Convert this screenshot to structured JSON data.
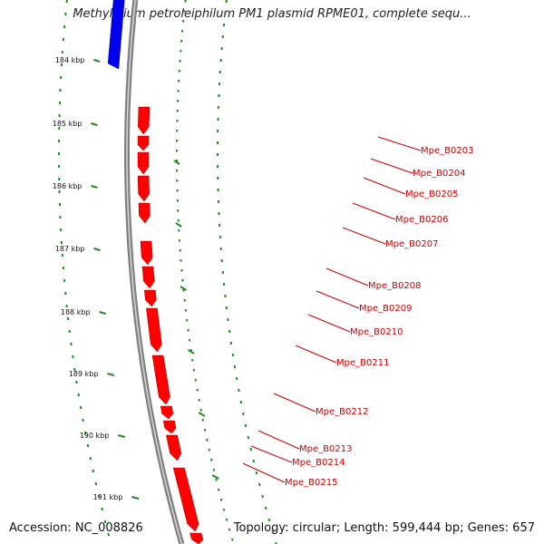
{
  "title": "Methylibium petroleiphilum PM1 plasmid RPME01, complete sequ...",
  "footer": {
    "accession": "Accession: NC_008826",
    "topology": "Topology: circular; Length: 599,444 bp; Genes: 657"
  },
  "ticks": [
    "184 kbp",
    "185 kbp",
    "186 kbp",
    "187 kbp",
    "188 kbp",
    "189 kbp",
    "190 kbp",
    "191 kbp"
  ],
  "genes": [
    "Mpe_B0203",
    "Mpe_B0204",
    "Mpe_B0205",
    "Mpe_B0206",
    "Mpe_B0207",
    "Mpe_B0208",
    "Mpe_B0209",
    "Mpe_B0210",
    "Mpe_B0211",
    "Mpe_B0212",
    "Mpe_B0213",
    "Mpe_B0214",
    "Mpe_B0215"
  ],
  "colors": {
    "backbone": "#808080",
    "forward_gene": "#0000ee",
    "reverse_gene": "#ff0000",
    "gene_label": "#cc0000",
    "gc_dots": "#228b22",
    "background": "#ffffff"
  }
}
